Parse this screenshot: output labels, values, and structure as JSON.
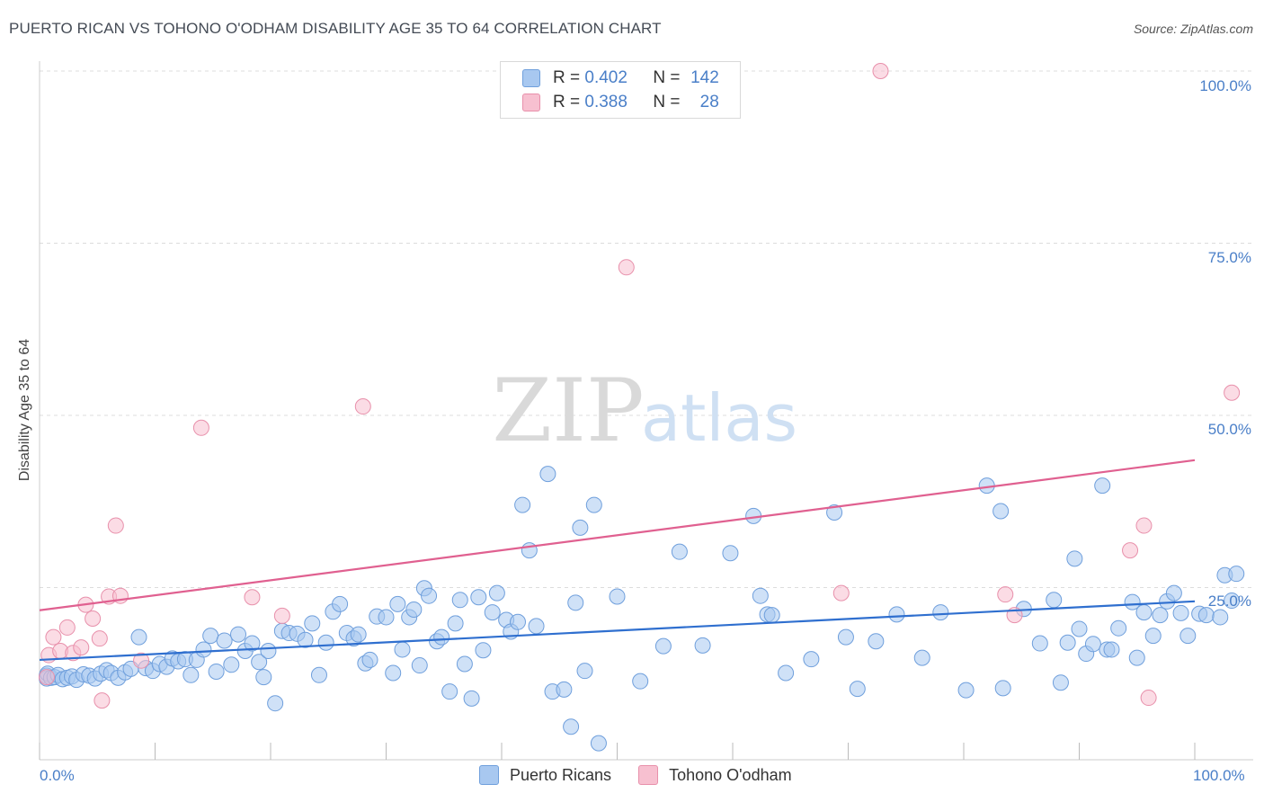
{
  "title": "PUERTO RICAN VS TOHONO O'ODHAM DISABILITY AGE 35 TO 64 CORRELATION CHART",
  "source": "Source: ZipAtlas.com",
  "watermark": {
    "zip": "ZIP",
    "atlas": "atlas"
  },
  "legend": {
    "rows": [
      {
        "r_label": "R =",
        "r_value": "0.402",
        "n_label": "N =",
        "n_value": "142",
        "color": "#a8c8f0",
        "border": "#6f9fdc"
      },
      {
        "r_label": "R =",
        "r_value": "0.388",
        "n_label": "N =",
        "n_value": "28",
        "color": "#f7c0d0",
        "border": "#e890ab"
      }
    ]
  },
  "bottom_legend": [
    {
      "label": "Puerto Ricans",
      "color": "#a8c8f0",
      "border": "#6f9fdc"
    },
    {
      "label": "Tohono O'odham",
      "color": "#f7c0d0",
      "border": "#e890ab"
    }
  ],
  "y_ticks": [
    "100.0%",
    "75.0%",
    "50.0%",
    "25.0%"
  ],
  "x_ticks": [
    "0.0%",
    "100.0%"
  ],
  "chart_data": {
    "type": "scatter",
    "title": "PUERTO RICAN VS TOHONO O'ODHAM DISABILITY AGE 35 TO 64 CORRELATION CHART",
    "xlabel": "",
    "ylabel": "Disability Age 35 to 64",
    "xlim": [
      0,
      100
    ],
    "ylim": [
      0,
      100
    ],
    "grid": true,
    "series": [
      {
        "name": "Puerto Ricans",
        "color": "#a8c8f0",
        "stroke": "#6f9fdc",
        "trend": {
          "x0": 0,
          "y0": 14.5,
          "x1": 100,
          "y1": 23.0,
          "color": "#2f6fcf"
        },
        "points": [
          [
            0.3,
            12.2
          ],
          [
            0.5,
            11.8
          ],
          [
            0.7,
            12.5
          ],
          [
            1.0,
            11.9
          ],
          [
            1.3,
            12.0
          ],
          [
            1.6,
            12.3
          ],
          [
            2.0,
            11.7
          ],
          [
            2.4,
            11.9
          ],
          [
            2.8,
            12.1
          ],
          [
            3.2,
            11.6
          ],
          [
            3.8,
            12.4
          ],
          [
            4.3,
            12.2
          ],
          [
            4.8,
            11.8
          ],
          [
            5.3,
            12.5
          ],
          [
            5.8,
            13.0
          ],
          [
            6.2,
            12.6
          ],
          [
            6.8,
            11.9
          ],
          [
            7.4,
            12.7
          ],
          [
            7.9,
            13.2
          ],
          [
            8.6,
            17.8
          ],
          [
            9.2,
            13.3
          ],
          [
            9.8,
            12.9
          ],
          [
            10.4,
            13.9
          ],
          [
            11.0,
            13.5
          ],
          [
            11.5,
            14.7
          ],
          [
            12.0,
            14.3
          ],
          [
            12.6,
            14.6
          ],
          [
            13.1,
            12.3
          ],
          [
            13.6,
            14.5
          ],
          [
            14.2,
            16.0
          ],
          [
            14.8,
            18.0
          ],
          [
            15.3,
            12.8
          ],
          [
            16.0,
            17.3
          ],
          [
            16.6,
            13.8
          ],
          [
            17.2,
            18.2
          ],
          [
            17.8,
            15.8
          ],
          [
            18.4,
            16.9
          ],
          [
            19.0,
            14.2
          ],
          [
            19.4,
            12.0
          ],
          [
            19.8,
            15.8
          ],
          [
            20.4,
            8.2
          ],
          [
            21.0,
            18.7
          ],
          [
            21.6,
            18.4
          ],
          [
            22.3,
            18.3
          ],
          [
            23.0,
            17.4
          ],
          [
            23.6,
            19.8
          ],
          [
            24.2,
            12.3
          ],
          [
            24.8,
            17.0
          ],
          [
            25.4,
            21.5
          ],
          [
            26.0,
            22.6
          ],
          [
            26.6,
            18.4
          ],
          [
            27.2,
            17.6
          ],
          [
            27.6,
            18.2
          ],
          [
            28.2,
            14.0
          ],
          [
            28.6,
            14.5
          ],
          [
            29.2,
            20.8
          ],
          [
            30.0,
            20.7
          ],
          [
            30.6,
            12.6
          ],
          [
            31.0,
            22.6
          ],
          [
            31.4,
            16.0
          ],
          [
            32.0,
            20.7
          ],
          [
            32.4,
            21.8
          ],
          [
            32.9,
            13.7
          ],
          [
            33.3,
            24.9
          ],
          [
            33.7,
            23.8
          ],
          [
            34.4,
            17.2
          ],
          [
            34.8,
            17.8
          ],
          [
            35.5,
            9.9
          ],
          [
            36.0,
            19.8
          ],
          [
            36.4,
            23.2
          ],
          [
            36.8,
            13.9
          ],
          [
            37.4,
            8.9
          ],
          [
            38.0,
            23.6
          ],
          [
            38.4,
            15.9
          ],
          [
            39.2,
            21.4
          ],
          [
            39.6,
            24.2
          ],
          [
            40.4,
            20.3
          ],
          [
            40.8,
            18.6
          ],
          [
            41.4,
            20.0
          ],
          [
            41.8,
            37.0
          ],
          [
            42.4,
            30.4
          ],
          [
            43.0,
            19.4
          ],
          [
            44.0,
            41.5
          ],
          [
            44.4,
            9.9
          ],
          [
            45.4,
            10.2
          ],
          [
            46.0,
            4.8
          ],
          [
            46.4,
            22.8
          ],
          [
            46.8,
            33.7
          ],
          [
            47.2,
            12.9
          ],
          [
            48.0,
            37.0
          ],
          [
            48.4,
            2.4
          ],
          [
            50.0,
            23.7
          ],
          [
            52.0,
            11.4
          ],
          [
            54.0,
            16.5
          ],
          [
            55.4,
            30.2
          ],
          [
            57.4,
            16.6
          ],
          [
            59.8,
            30.0
          ],
          [
            61.8,
            35.4
          ],
          [
            62.4,
            23.8
          ],
          [
            63.0,
            21.1
          ],
          [
            63.4,
            21.0
          ],
          [
            64.6,
            12.6
          ],
          [
            66.8,
            14.6
          ],
          [
            68.8,
            35.9
          ],
          [
            69.8,
            17.8
          ],
          [
            70.8,
            10.3
          ],
          [
            72.4,
            17.2
          ],
          [
            74.2,
            21.1
          ],
          [
            76.4,
            14.8
          ],
          [
            78.0,
            21.4
          ],
          [
            80.2,
            10.1
          ],
          [
            82.0,
            39.8
          ],
          [
            83.2,
            36.1
          ],
          [
            83.4,
            10.4
          ],
          [
            85.2,
            21.9
          ],
          [
            86.6,
            16.9
          ],
          [
            87.8,
            23.2
          ],
          [
            88.4,
            11.2
          ],
          [
            89.0,
            17.0
          ],
          [
            89.6,
            29.2
          ],
          [
            90.0,
            19.0
          ],
          [
            90.6,
            15.4
          ],
          [
            91.2,
            16.8
          ],
          [
            92.0,
            39.8
          ],
          [
            92.4,
            16.0
          ],
          [
            92.8,
            16.0
          ],
          [
            93.4,
            19.1
          ],
          [
            94.6,
            22.9
          ],
          [
            95.0,
            14.8
          ],
          [
            95.6,
            21.4
          ],
          [
            96.4,
            18.0
          ],
          [
            97.0,
            21.0
          ],
          [
            97.6,
            23.0
          ],
          [
            98.2,
            24.2
          ],
          [
            98.8,
            21.3
          ],
          [
            99.4,
            18.0
          ],
          [
            100.4,
            21.2
          ],
          [
            101.0,
            21.0
          ],
          [
            102.2,
            20.7
          ],
          [
            102.6,
            26.8
          ],
          [
            103.2,
            23.1
          ],
          [
            103.6,
            27.0
          ]
        ]
      },
      {
        "name": "Tohono O'odham",
        "color": "#f7c0d0",
        "stroke": "#e890ab",
        "trend": {
          "x0": 0,
          "y0": 21.7,
          "x1": 100,
          "y1": 43.5,
          "color": "#e06090"
        },
        "points": [
          [
            0.3,
            12.0
          ],
          [
            0.8,
            15.2
          ],
          [
            1.2,
            17.8
          ],
          [
            1.8,
            15.8
          ],
          [
            2.4,
            19.2
          ],
          [
            2.9,
            15.5
          ],
          [
            3.6,
            16.3
          ],
          [
            4.0,
            22.5
          ],
          [
            4.6,
            20.5
          ],
          [
            5.2,
            17.6
          ],
          [
            5.4,
            8.6
          ],
          [
            6.0,
            23.7
          ],
          [
            6.6,
            34.0
          ],
          [
            7.0,
            23.8
          ],
          [
            8.8,
            14.4
          ],
          [
            14.0,
            48.2
          ],
          [
            18.4,
            23.6
          ],
          [
            21.0,
            20.9
          ],
          [
            28.0,
            51.3
          ],
          [
            50.8,
            71.5
          ],
          [
            69.4,
            24.2
          ],
          [
            72.8,
            100.0
          ],
          [
            83.6,
            24.0
          ],
          [
            84.4,
            21.0
          ],
          [
            94.4,
            30.4
          ],
          [
            95.6,
            34.0
          ],
          [
            96.0,
            9.0
          ],
          [
            103.2,
            53.3
          ]
        ]
      }
    ]
  }
}
